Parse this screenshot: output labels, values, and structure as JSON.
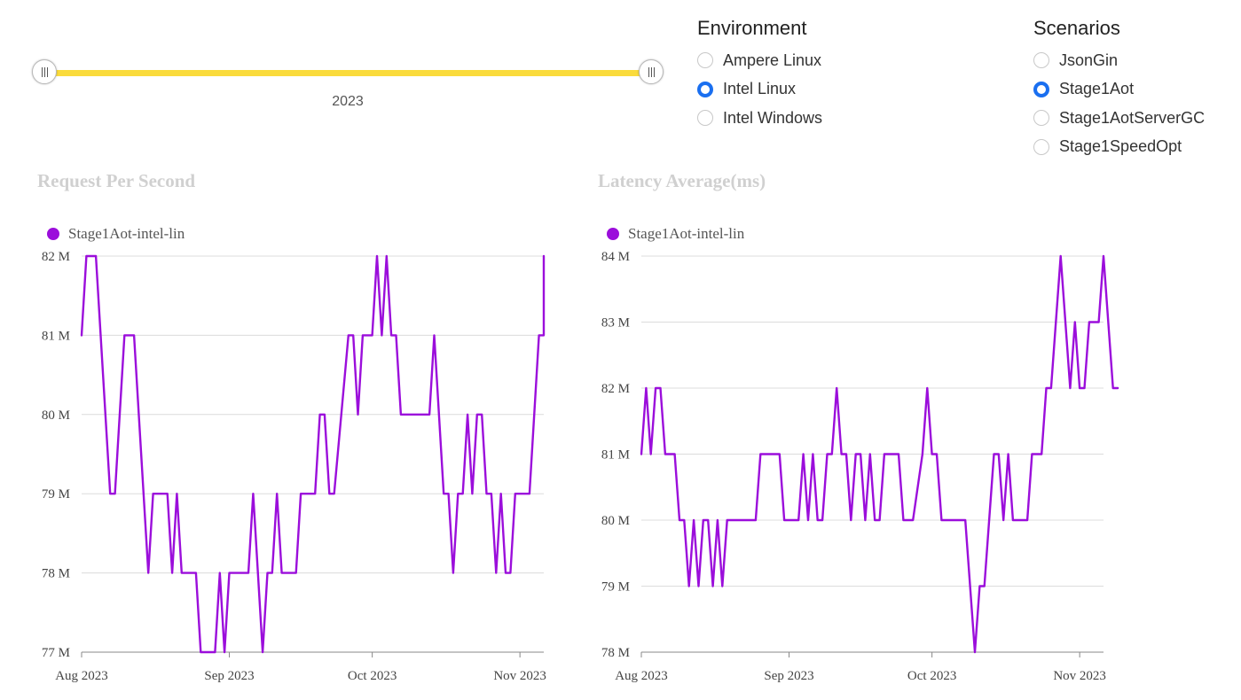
{
  "slider": {
    "label": "2023",
    "track_color": "#fadb3c"
  },
  "environment": {
    "title": "Environment",
    "options": [
      {
        "label": "Ampere Linux",
        "checked": false
      },
      {
        "label": "Intel Linux",
        "checked": true
      },
      {
        "label": "Intel Windows",
        "checked": false
      }
    ]
  },
  "scenarios": {
    "title": "Scenarios",
    "options": [
      {
        "label": "JsonGin",
        "checked": false
      },
      {
        "label": "Stage1Aot",
        "checked": true
      },
      {
        "label": "Stage1AotServerGC",
        "checked": false
      },
      {
        "label": "Stage1SpeedOpt",
        "checked": false
      }
    ]
  },
  "accent_color": "#1a6ff0",
  "series_color": "#9b0edb",
  "chart_data": [
    {
      "type": "line",
      "title": "Request Per Second",
      "legend": "top-left",
      "grid": true,
      "ylim": [
        77,
        82
      ],
      "y_ticks": [
        {
          "value": 77,
          "label": "77 M"
        },
        {
          "value": 78,
          "label": "78 M"
        },
        {
          "value": 79,
          "label": "79 M"
        },
        {
          "value": 80,
          "label": "80 M"
        },
        {
          "value": 81,
          "label": "81 M"
        },
        {
          "value": 82,
          "label": "82 M"
        }
      ],
      "xlim": [
        "2023-08-01",
        "2023-11-06"
      ],
      "x_ticks": [
        {
          "date": "2023-08-01",
          "label": "Aug 2023"
        },
        {
          "date": "2023-09-01",
          "label": "Sep 2023"
        },
        {
          "date": "2023-10-01",
          "label": "Oct 2023"
        },
        {
          "date": "2023-11-01",
          "label": "Nov 2023"
        }
      ],
      "series": [
        {
          "name": "Stage1Aot-intel-lin",
          "points": [
            [
              "2023-08-01",
              81
            ],
            [
              "2023-08-02",
              82
            ],
            [
              "2023-08-04",
              82
            ],
            [
              "2023-08-07",
              79
            ],
            [
              "2023-08-08",
              79
            ],
            [
              "2023-08-10",
              81
            ],
            [
              "2023-08-12",
              81
            ],
            [
              "2023-08-15",
              78
            ],
            [
              "2023-08-16",
              79
            ],
            [
              "2023-08-19",
              79
            ],
            [
              "2023-08-20",
              78
            ],
            [
              "2023-08-21",
              79
            ],
            [
              "2023-08-22",
              78
            ],
            [
              "2023-08-25",
              78
            ],
            [
              "2023-08-26",
              77
            ],
            [
              "2023-08-29",
              77
            ],
            [
              "2023-08-30",
              78
            ],
            [
              "2023-08-31",
              77
            ],
            [
              "2023-09-01",
              78
            ],
            [
              "2023-09-05",
              78
            ],
            [
              "2023-09-06",
              79
            ],
            [
              "2023-09-08",
              77
            ],
            [
              "2023-09-09",
              78
            ],
            [
              "2023-09-10",
              78
            ],
            [
              "2023-09-11",
              79
            ],
            [
              "2023-09-12",
              78
            ],
            [
              "2023-09-15",
              78
            ],
            [
              "2023-09-16",
              79
            ],
            [
              "2023-09-19",
              79
            ],
            [
              "2023-09-20",
              80
            ],
            [
              "2023-09-21",
              80
            ],
            [
              "2023-09-22",
              79
            ],
            [
              "2023-09-23",
              79
            ],
            [
              "2023-09-26",
              81
            ],
            [
              "2023-09-27",
              81
            ],
            [
              "2023-09-28",
              80
            ],
            [
              "2023-09-29",
              81
            ],
            [
              "2023-10-01",
              81
            ],
            [
              "2023-10-02",
              82
            ],
            [
              "2023-10-03",
              81
            ],
            [
              "2023-10-04",
              82
            ],
            [
              "2023-10-05",
              81
            ],
            [
              "2023-10-06",
              81
            ],
            [
              "2023-10-07",
              80
            ],
            [
              "2023-10-13",
              80
            ],
            [
              "2023-10-14",
              81
            ],
            [
              "2023-10-16",
              79
            ],
            [
              "2023-10-17",
              79
            ],
            [
              "2023-10-18",
              78
            ],
            [
              "2023-10-19",
              79
            ],
            [
              "2023-10-20",
              79
            ],
            [
              "2023-10-21",
              80
            ],
            [
              "2023-10-22",
              79
            ],
            [
              "2023-10-23",
              80
            ],
            [
              "2023-10-24",
              80
            ],
            [
              "2023-10-25",
              79
            ],
            [
              "2023-10-26",
              79
            ],
            [
              "2023-10-27",
              78
            ],
            [
              "2023-10-28",
              79
            ],
            [
              "2023-10-29",
              78
            ],
            [
              "2023-10-30",
              78
            ],
            [
              "2023-10-31",
              79
            ],
            [
              "2023-11-03",
              79
            ],
            [
              "2023-11-05",
              81
            ],
            [
              "2023-11-06",
              81
            ],
            [
              "2023-11-06",
              82
            ]
          ]
        }
      ]
    },
    {
      "type": "line",
      "title": "Latency Average(ms)",
      "legend": "top-left",
      "grid": true,
      "ylim": [
        78,
        84
      ],
      "y_ticks": [
        {
          "value": 78,
          "label": "78 M"
        },
        {
          "value": 79,
          "label": "79 M"
        },
        {
          "value": 80,
          "label": "80 M"
        },
        {
          "value": 81,
          "label": "81 M"
        },
        {
          "value": 82,
          "label": "82 M"
        },
        {
          "value": 83,
          "label": "83 M"
        },
        {
          "value": 84,
          "label": "84 M"
        }
      ],
      "xlim": [
        "2023-08-01",
        "2023-11-06"
      ],
      "x_ticks": [
        {
          "date": "2023-08-01",
          "label": "Aug 2023"
        },
        {
          "date": "2023-09-01",
          "label": "Sep 2023"
        },
        {
          "date": "2023-10-01",
          "label": "Oct 2023"
        },
        {
          "date": "2023-11-01",
          "label": "Nov 2023"
        }
      ],
      "series": [
        {
          "name": "Stage1Aot-intel-lin",
          "points": [
            [
              "2023-08-01",
              81
            ],
            [
              "2023-08-02",
              82
            ],
            [
              "2023-08-03",
              81
            ],
            [
              "2023-08-04",
              82
            ],
            [
              "2023-08-05",
              82
            ],
            [
              "2023-08-06",
              81
            ],
            [
              "2023-08-08",
              81
            ],
            [
              "2023-08-09",
              80
            ],
            [
              "2023-08-10",
              80
            ],
            [
              "2023-08-11",
              79
            ],
            [
              "2023-08-12",
              80
            ],
            [
              "2023-08-13",
              79
            ],
            [
              "2023-08-14",
              80
            ],
            [
              "2023-08-15",
              80
            ],
            [
              "2023-08-16",
              79
            ],
            [
              "2023-08-17",
              80
            ],
            [
              "2023-08-18",
              79
            ],
            [
              "2023-08-19",
              80
            ],
            [
              "2023-08-25",
              80
            ],
            [
              "2023-08-26",
              81
            ],
            [
              "2023-08-30",
              81
            ],
            [
              "2023-08-31",
              80
            ],
            [
              "2023-09-03",
              80
            ],
            [
              "2023-09-04",
              81
            ],
            [
              "2023-09-05",
              80
            ],
            [
              "2023-09-06",
              81
            ],
            [
              "2023-09-07",
              80
            ],
            [
              "2023-09-08",
              80
            ],
            [
              "2023-09-09",
              81
            ],
            [
              "2023-09-10",
              81
            ],
            [
              "2023-09-11",
              82
            ],
            [
              "2023-09-12",
              81
            ],
            [
              "2023-09-13",
              81
            ],
            [
              "2023-09-14",
              80
            ],
            [
              "2023-09-15",
              81
            ],
            [
              "2023-09-16",
              81
            ],
            [
              "2023-09-17",
              80
            ],
            [
              "2023-09-18",
              81
            ],
            [
              "2023-09-19",
              80
            ],
            [
              "2023-09-20",
              80
            ],
            [
              "2023-09-21",
              81
            ],
            [
              "2023-09-24",
              81
            ],
            [
              "2023-09-25",
              80
            ],
            [
              "2023-09-27",
              80
            ],
            [
              "2023-09-29",
              81
            ],
            [
              "2023-09-30",
              82
            ],
            [
              "2023-10-01",
              81
            ],
            [
              "2023-10-02",
              81
            ],
            [
              "2023-10-03",
              80
            ],
            [
              "2023-10-08",
              80
            ],
            [
              "2023-10-10",
              78
            ],
            [
              "2023-10-11",
              79
            ],
            [
              "2023-10-12",
              79
            ],
            [
              "2023-10-14",
              81
            ],
            [
              "2023-10-15",
              81
            ],
            [
              "2023-10-16",
              80
            ],
            [
              "2023-10-17",
              81
            ],
            [
              "2023-10-18",
              80
            ],
            [
              "2023-10-21",
              80
            ],
            [
              "2023-10-22",
              81
            ],
            [
              "2023-10-24",
              81
            ],
            [
              "2023-10-25",
              82
            ],
            [
              "2023-10-26",
              82
            ],
            [
              "2023-10-28",
              84
            ],
            [
              "2023-10-30",
              82
            ],
            [
              "2023-10-31",
              83
            ],
            [
              "2023-11-01",
              82
            ],
            [
              "2023-11-02",
              82
            ],
            [
              "2023-11-03",
              83
            ],
            [
              "2023-11-05",
              83
            ],
            [
              "2023-11-06",
              84
            ],
            [
              "2023-11-08",
              82
            ],
            [
              "2023-11-09",
              82
            ]
          ]
        }
      ]
    }
  ]
}
